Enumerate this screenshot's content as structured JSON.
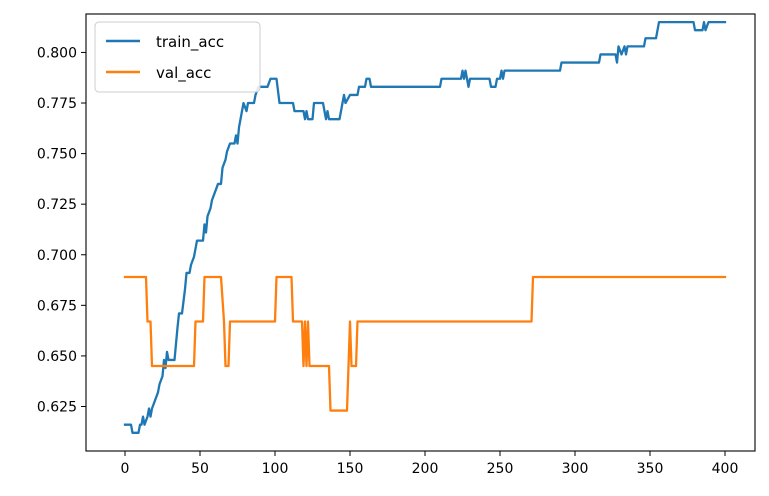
{
  "chart_data": {
    "type": "line",
    "title": "",
    "xlabel": "",
    "ylabel": "",
    "xlim": [
      -26,
      420
    ],
    "ylim": [
      0.603,
      0.819
    ],
    "xticks": [
      0,
      50,
      100,
      150,
      200,
      250,
      300,
      350,
      400
    ],
    "yticks": [
      0.625,
      0.65,
      0.675,
      0.7,
      0.725,
      0.75,
      0.775,
      0.8
    ],
    "ytick_labels": [
      "0.625",
      "0.650",
      "0.675",
      "0.700",
      "0.725",
      "0.750",
      "0.775",
      "0.800"
    ],
    "grid": false,
    "legend": "top-left",
    "series": [
      {
        "name": "train_acc",
        "color": "#1f77b4",
        "points": [
          [
            0,
            0.616
          ],
          [
            4,
            0.616
          ],
          [
            5,
            0.612
          ],
          [
            9,
            0.612
          ],
          [
            10,
            0.616
          ],
          [
            11,
            0.616
          ],
          [
            12,
            0.62
          ],
          [
            13,
            0.616
          ],
          [
            15,
            0.62
          ],
          [
            16,
            0.624
          ],
          [
            17,
            0.62
          ],
          [
            18,
            0.624
          ],
          [
            20,
            0.628
          ],
          [
            22,
            0.632
          ],
          [
            23,
            0.636
          ],
          [
            25,
            0.64
          ],
          [
            26,
            0.648
          ],
          [
            27,
            0.644
          ],
          [
            28,
            0.652
          ],
          [
            29,
            0.648
          ],
          [
            30,
            0.648
          ],
          [
            33,
            0.648
          ],
          [
            34,
            0.656
          ],
          [
            35,
            0.664
          ],
          [
            36,
            0.671
          ],
          [
            38,
            0.671
          ],
          [
            40,
            0.683
          ],
          [
            41,
            0.691
          ],
          [
            43,
            0.691
          ],
          [
            44,
            0.695
          ],
          [
            46,
            0.699
          ],
          [
            47,
            0.703
          ],
          [
            48,
            0.707
          ],
          [
            52,
            0.707
          ],
          [
            53,
            0.715
          ],
          [
            54,
            0.711
          ],
          [
            55,
            0.719
          ],
          [
            57,
            0.723
          ],
          [
            58,
            0.727
          ],
          [
            60,
            0.731
          ],
          [
            62,
            0.735
          ],
          [
            64,
            0.735
          ],
          [
            65,
            0.743
          ],
          [
            67,
            0.747
          ],
          [
            68,
            0.751
          ],
          [
            70,
            0.755
          ],
          [
            73,
            0.755
          ],
          [
            74,
            0.759
          ],
          [
            75,
            0.755
          ],
          [
            76,
            0.763
          ],
          [
            77,
            0.767
          ],
          [
            78,
            0.771
          ],
          [
            79,
            0.775
          ],
          [
            81,
            0.771
          ],
          [
            82,
            0.775
          ],
          [
            86,
            0.775
          ],
          [
            87,
            0.779
          ],
          [
            89,
            0.783
          ],
          [
            95,
            0.783
          ],
          [
            97,
            0.787
          ],
          [
            101,
            0.787
          ],
          [
            103,
            0.775
          ],
          [
            112,
            0.775
          ],
          [
            113,
            0.771
          ],
          [
            119,
            0.771
          ],
          [
            120,
            0.767
          ],
          [
            121,
            0.771
          ],
          [
            122,
            0.767
          ],
          [
            125,
            0.767
          ],
          [
            126,
            0.775
          ],
          [
            132,
            0.775
          ],
          [
            133,
            0.771
          ],
          [
            134,
            0.767
          ],
          [
            135,
            0.771
          ],
          [
            136,
            0.767
          ],
          [
            143,
            0.767
          ],
          [
            144,
            0.771
          ],
          [
            145,
            0.775
          ],
          [
            146,
            0.779
          ],
          [
            147,
            0.775
          ],
          [
            150,
            0.779
          ],
          [
            155,
            0.779
          ],
          [
            156,
            0.783
          ],
          [
            160,
            0.783
          ],
          [
            161,
            0.787
          ],
          [
            163,
            0.787
          ],
          [
            164,
            0.783
          ],
          [
            210,
            0.783
          ],
          [
            211,
            0.787
          ],
          [
            224,
            0.787
          ],
          [
            225,
            0.791
          ],
          [
            226,
            0.787
          ],
          [
            227,
            0.791
          ],
          [
            228,
            0.787
          ],
          [
            229,
            0.783
          ],
          [
            230,
            0.787
          ],
          [
            243,
            0.787
          ],
          [
            244,
            0.783
          ],
          [
            247,
            0.783
          ],
          [
            248,
            0.787
          ],
          [
            250,
            0.787
          ],
          [
            251,
            0.791
          ],
          [
            252,
            0.787
          ],
          [
            253,
            0.791
          ],
          [
            290,
            0.791
          ],
          [
            291,
            0.795
          ],
          [
            316,
            0.795
          ],
          [
            317,
            0.799
          ],
          [
            327,
            0.799
          ],
          [
            328,
            0.795
          ],
          [
            329,
            0.803
          ],
          [
            331,
            0.799
          ],
          [
            333,
            0.803
          ],
          [
            334,
            0.799
          ],
          [
            335,
            0.803
          ],
          [
            346,
            0.803
          ],
          [
            347,
            0.807
          ],
          [
            354,
            0.807
          ],
          [
            356,
            0.815
          ],
          [
            379,
            0.815
          ],
          [
            380,
            0.811
          ],
          [
            385,
            0.811
          ],
          [
            386,
            0.815
          ],
          [
            387,
            0.811
          ],
          [
            389,
            0.815
          ],
          [
            400,
            0.815
          ]
        ]
      },
      {
        "name": "val_acc",
        "color": "#ff7f0e",
        "points": [
          [
            0,
            0.689
          ],
          [
            14,
            0.689
          ],
          [
            15,
            0.667
          ],
          [
            17,
            0.667
          ],
          [
            18,
            0.645
          ],
          [
            46,
            0.645
          ],
          [
            47,
            0.667
          ],
          [
            52,
            0.667
          ],
          [
            53,
            0.689
          ],
          [
            64,
            0.689
          ],
          [
            66,
            0.667
          ],
          [
            67,
            0.645
          ],
          [
            69,
            0.645
          ],
          [
            70,
            0.667
          ],
          [
            100,
            0.667
          ],
          [
            101,
            0.689
          ],
          [
            111,
            0.689
          ],
          [
            112,
            0.667
          ],
          [
            118,
            0.667
          ],
          [
            119,
            0.645
          ],
          [
            120,
            0.667
          ],
          [
            121,
            0.645
          ],
          [
            122,
            0.667
          ],
          [
            123,
            0.645
          ],
          [
            136,
            0.645
          ],
          [
            137,
            0.623
          ],
          [
            148,
            0.623
          ],
          [
            149,
            0.645
          ],
          [
            150,
            0.667
          ],
          [
            151,
            0.645
          ],
          [
            154,
            0.645
          ],
          [
            155,
            0.667
          ],
          [
            271,
            0.667
          ],
          [
            272,
            0.689
          ],
          [
            400,
            0.689
          ]
        ]
      }
    ]
  }
}
